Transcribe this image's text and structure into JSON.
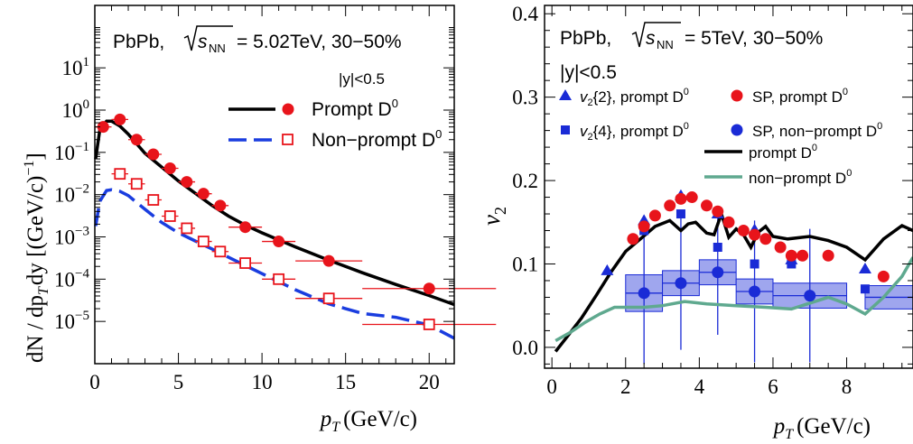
{
  "chart_data": [
    {
      "type": "scatter",
      "title": "PbPb, √s_NN = 5.02TeV, 30−50%",
      "title_prefix": "PbPb,",
      "energy": "= 5.02TeV, 30−50%",
      "cut": "|y|<0.5",
      "xlabel": "p_T (GeV/c)",
      "xlabel_var": "p",
      "xlabel_sub": "T",
      "xlabel_unit": "(GeV/c)",
      "ylabel": "dN / dp_T dy [(GeV/c)^-1]",
      "ylabel_a": "dN / dp",
      "ylabel_b": "T",
      "ylabel_c": "dy [(GeV/c)",
      "ylabel_d": "−1",
      "ylabel_e": "]",
      "xlim": [
        0,
        21.5
      ],
      "ylim": [
        1e-06,
        300
      ],
      "yscale": "log",
      "xticks": [
        "0",
        "5",
        "10",
        "15",
        "20"
      ],
      "yticks": [
        {
          "base": "10",
          "exp": "−5",
          "value": 1e-05
        },
        {
          "base": "10",
          "exp": "−4",
          "value": 0.0001
        },
        {
          "base": "10",
          "exp": "−3",
          "value": 0.001
        },
        {
          "base": "10",
          "exp": "−2",
          "value": 0.01
        },
        {
          "base": "10",
          "exp": "−1",
          "value": 0.1
        },
        {
          "base": "10",
          "exp": "0",
          "value": 1
        },
        {
          "base": "10",
          "exp": "1",
          "value": 10
        }
      ],
      "legend_placement": "top-right",
      "series": [
        {
          "name": "Prompt D0",
          "label": "Prompt D",
          "sup": "0",
          "color": "#e8141b",
          "marker": "filled-circle",
          "x": [
            0.5,
            1.5,
            2.5,
            3.5,
            4.5,
            5.5,
            6.5,
            7.5,
            9,
            11,
            14,
            20
          ],
          "xerr": [
            0.5,
            0.5,
            0.5,
            0.5,
            0.5,
            0.5,
            0.5,
            0.5,
            1,
            1,
            2,
            4
          ],
          "y": [
            0.4,
            0.6,
            0.2,
            0.09,
            0.042,
            0.02,
            0.0105,
            0.0055,
            0.0017,
            0.00078,
            0.00027,
            6e-05
          ]
        },
        {
          "name": "Non-prompt D0",
          "label": "Non−prompt D",
          "sup": "0",
          "color": "#e8141b",
          "marker": "open-square",
          "x": [
            1.5,
            2.5,
            3.5,
            4.5,
            5.5,
            6.5,
            7.5,
            9,
            11,
            14,
            20
          ],
          "xerr": [
            0.5,
            0.5,
            0.5,
            0.5,
            0.5,
            0.5,
            0.5,
            1,
            1,
            2,
            4
          ],
          "y": [
            0.031,
            0.018,
            0.0075,
            0.0031,
            0.0016,
            0.00078,
            0.00045,
            0.00024,
            0.0001,
            3.5e-05,
            8.5e-06
          ]
        }
      ],
      "curves": [
        {
          "name": "prompt-model",
          "color": "#000000",
          "style": "solid",
          "x": [
            0.05,
            0.3,
            0.7,
            1.0,
            1.5,
            2,
            3,
            4,
            5,
            6,
            7,
            8,
            9,
            10,
            12,
            14,
            16,
            18,
            20,
            21.5
          ],
          "y": [
            0.07,
            0.35,
            0.55,
            0.55,
            0.42,
            0.27,
            0.095,
            0.045,
            0.021,
            0.0108,
            0.0056,
            0.0031,
            0.0019,
            0.00125,
            0.00058,
            0.00028,
            0.000142,
            7.5e-05,
            4.1e-05,
            2.5e-05
          ]
        },
        {
          "name": "non-prompt-model",
          "color": "#1a3ddf",
          "style": "dashed",
          "x": [
            0.05,
            0.3,
            0.7,
            1.0,
            1.5,
            2,
            3,
            4,
            5,
            6,
            7,
            8,
            9,
            10,
            12,
            14,
            16,
            18,
            20,
            21.5
          ],
          "y": [
            0.0018,
            0.007,
            0.0125,
            0.013,
            0.012,
            0.0095,
            0.0045,
            0.0022,
            0.00125,
            0.0008,
            0.00052,
            0.00033,
            0.00021,
            0.000135,
            5.6e-05,
            2.6e-05,
            1.55e-05,
            1.25e-05,
            8.2e-06,
            4e-06
          ]
        }
      ]
    },
    {
      "type": "scatter",
      "title": "PbPb, √s_NN = 5TeV, 30−50%",
      "title_prefix": "PbPb,",
      "energy": "= 5TeV, 30−50%",
      "cut": "|y|<0.5",
      "xlabel": "p_T (GeV/c)",
      "xlabel_var": "p",
      "xlabel_sub": "T",
      "xlabel_unit": "(GeV/c)",
      "ylabel": "v2",
      "ylabel_var": "v",
      "ylabel_sub": "2",
      "xlim": [
        -0.2,
        9.8
      ],
      "ylim": [
        -0.025,
        0.41
      ],
      "xticks": [
        "0",
        "2",
        "4",
        "6",
        "8"
      ],
      "yticks": [
        "0.0",
        "0.1",
        "0.2",
        "0.3",
        "0.4"
      ],
      "legend_placement": "top",
      "legend": [
        {
          "name": "v2{2}, prompt D0",
          "var": "v",
          "sub": "2",
          "text": "{2}, prompt D",
          "sup": "0",
          "marker": "filled-triangle",
          "color": "#1a2bd6"
        },
        {
          "name": "SP, prompt D0",
          "text": "SP, prompt D",
          "sup": "0",
          "marker": "filled-circle",
          "color": "#e8141b"
        },
        {
          "name": "v2{4}, prompt D0",
          "var": "v",
          "sub": "2",
          "text": "{4}, prompt D",
          "sup": "0",
          "marker": "filled-square",
          "color": "#1a2bd6"
        },
        {
          "name": "SP, non-prompt D0",
          "text": "SP, non−prompt D",
          "sup": "0",
          "marker": "filled-circle",
          "color": "#1a2bd6"
        },
        {
          "name": "prompt D0",
          "text": "prompt D",
          "sup": "0",
          "marker": "line",
          "color": "#000000"
        },
        {
          "name": "non-prompt D0",
          "text": "non−prompt D",
          "sup": "0",
          "marker": "line",
          "color": "#5fa98f"
        }
      ],
      "series": [
        {
          "name": "v2{2}, prompt D0",
          "color": "#1a2bd6",
          "marker": "filled-triangle",
          "x": [
            1.5,
            2.5,
            3.5,
            4.5,
            5.5,
            6.5,
            8.5
          ],
          "y": [
            0.092,
            0.152,
            0.182,
            0.16,
            0.141,
            0.105,
            0.094
          ]
        },
        {
          "name": "v2{4}, prompt D0",
          "color": "#1a2bd6",
          "marker": "filled-square",
          "x": [
            2.5,
            3.5,
            4.5,
            5.5,
            6.5,
            8.5
          ],
          "y": [
            0.14,
            0.16,
            0.12,
            0.1,
            0.1,
            0.07
          ]
        },
        {
          "name": "SP, prompt D0",
          "color": "#e8141b",
          "marker": "filled-circle",
          "x": [
            2.2,
            2.5,
            2.8,
            3.2,
            3.5,
            3.8,
            4.2,
            4.5,
            4.8,
            5.2,
            5.5,
            5.8,
            6.2,
            6.5,
            6.8,
            7.5,
            9.0
          ],
          "y": [
            0.13,
            0.145,
            0.158,
            0.17,
            0.178,
            0.18,
            0.17,
            0.163,
            0.15,
            0.14,
            0.135,
            0.13,
            0.12,
            0.11,
            0.11,
            0.11,
            0.085
          ]
        },
        {
          "name": "SP, non-prompt D0",
          "color": "#1a2bd6",
          "marker": "filled-circle",
          "x": [
            2.5,
            3.5,
            4.5,
            5.5,
            7.0
          ],
          "xerr": [
            0.5,
            0.5,
            0.5,
            0.5,
            1.0
          ],
          "y": [
            0.065,
            0.077,
            0.09,
            0.067,
            0.062
          ],
          "yerr": [
            0.085,
            0.08,
            0.075,
            0.085,
            0.08
          ],
          "syst": [
            0.022,
            0.015,
            0.015,
            0.015,
            0.015
          ],
          "extra_box": {
            "x": 9.3,
            "xerr": 0.8,
            "y": 0.06,
            "syst": 0.014
          }
        }
      ],
      "curves": [
        {
          "name": "prompt-model",
          "color": "#000000",
          "x": [
            0.1,
            0.4,
            0.8,
            1.2,
            1.6,
            2.0,
            2.4,
            2.8,
            3.2,
            3.5,
            3.7,
            3.9,
            4.2,
            4.4,
            4.6,
            4.8,
            5.0,
            5.2,
            5.4,
            5.6,
            5.8,
            6.0,
            6.4,
            7.0,
            7.5,
            8.0,
            8.5,
            9.0,
            9.5,
            9.8
          ],
          "y": [
            -0.005,
            0.012,
            0.035,
            0.062,
            0.09,
            0.115,
            0.13,
            0.145,
            0.152,
            0.14,
            0.148,
            0.15,
            0.137,
            0.135,
            0.16,
            0.132,
            0.142,
            0.135,
            0.12,
            0.138,
            0.145,
            0.133,
            0.13,
            0.133,
            0.128,
            0.12,
            0.105,
            0.13,
            0.146,
            0.14
          ]
        },
        {
          "name": "non-prompt-model",
          "color": "#5fa98f",
          "x": [
            0.1,
            0.5,
            0.9,
            1.3,
            1.7,
            2.5,
            3.0,
            3.6,
            4.2,
            5.0,
            5.8,
            6.5,
            7.5,
            8.0,
            8.5,
            9.0,
            9.5,
            9.8
          ],
          "y": [
            0.008,
            0.018,
            0.03,
            0.04,
            0.048,
            0.048,
            0.05,
            0.055,
            0.052,
            0.05,
            0.048,
            0.046,
            0.06,
            0.052,
            0.04,
            0.06,
            0.085,
            0.108
          ]
        }
      ]
    }
  ]
}
